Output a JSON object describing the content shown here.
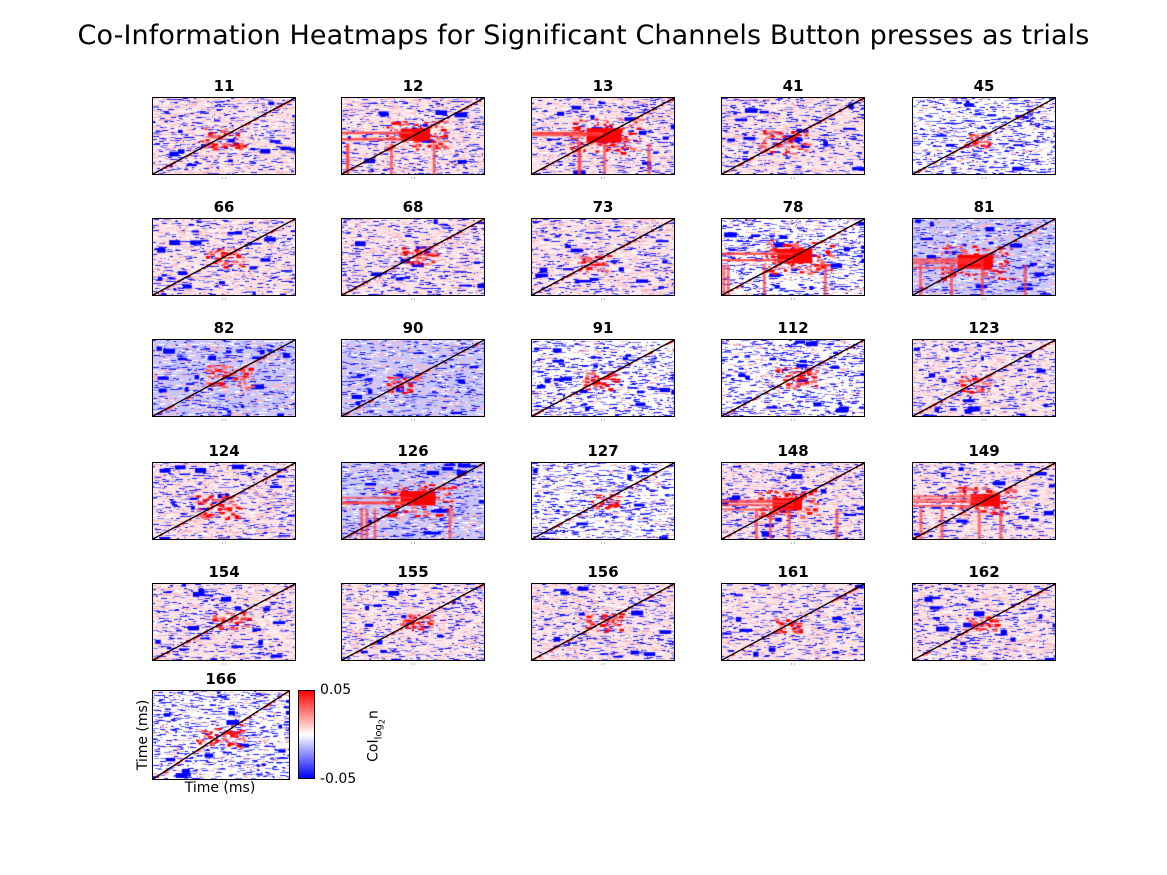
{
  "title": "Co-Information Heatmaps for Significant Channels Button presses as trials",
  "colors": {
    "positive": "#ff0000",
    "zero": "#ffffff",
    "negative": "#0000ff",
    "diagonal": "#000000"
  },
  "chart_data": {
    "type": "heatmap",
    "title": "Co-Information Heatmaps for Significant Channels Button presses as trials",
    "grid": "5 columns x 6 rows of small multiples",
    "xlabel": "Time (ms)",
    "ylabel": "Time (ms)",
    "colorbar": {
      "label_main": "CoI",
      "label_sub": "log",
      "label_subsub": "2",
      "label_tail": "n",
      "max_label": "0.05",
      "min_label": "-0.05",
      "range": [
        -0.05,
        0.05
      ],
      "colormap": "blue-white-red"
    },
    "panels": [
      {
        "channel": "11",
        "background": "light-pink",
        "hotspot_strength": 0.5
      },
      {
        "channel": "12",
        "background": "light-pink",
        "hotspot_strength": 0.8
      },
      {
        "channel": "13",
        "background": "light-pink",
        "hotspot_strength": 1.0
      },
      {
        "channel": "41",
        "background": "light-pink",
        "hotspot_strength": 0.6
      },
      {
        "channel": "45",
        "background": "white",
        "hotspot_strength": 0.2
      },
      {
        "channel": "66",
        "background": "light-pink",
        "hotspot_strength": 0.4
      },
      {
        "channel": "68",
        "background": "light-pink",
        "hotspot_strength": 0.4
      },
      {
        "channel": "73",
        "background": "light-pink",
        "hotspot_strength": 0.3
      },
      {
        "channel": "78",
        "background": "white",
        "hotspot_strength": 1.0
      },
      {
        "channel": "81",
        "background": "light-blue",
        "hotspot_strength": 1.0
      },
      {
        "channel": "82",
        "background": "light-blue",
        "hotspot_strength": 0.6
      },
      {
        "channel": "90",
        "background": "light-blue",
        "hotspot_strength": 0.3
      },
      {
        "channel": "91",
        "background": "white",
        "hotspot_strength": 0.4
      },
      {
        "channel": "112",
        "background": "white",
        "hotspot_strength": 0.5
      },
      {
        "channel": "123",
        "background": "light-pink",
        "hotspot_strength": 0.3
      },
      {
        "channel": "124",
        "background": "light-pink",
        "hotspot_strength": 0.6
      },
      {
        "channel": "126",
        "background": "light-blue",
        "hotspot_strength": 1.0
      },
      {
        "channel": "127",
        "background": "white",
        "hotspot_strength": 0.2
      },
      {
        "channel": "148",
        "background": "light-pink",
        "hotspot_strength": 0.8
      },
      {
        "channel": "149",
        "background": "light-pink",
        "hotspot_strength": 0.8
      },
      {
        "channel": "154",
        "background": "light-pink",
        "hotspot_strength": 0.4
      },
      {
        "channel": "155",
        "background": "light-pink",
        "hotspot_strength": 0.3
      },
      {
        "channel": "156",
        "background": "light-pink",
        "hotspot_strength": 0.4
      },
      {
        "channel": "161",
        "background": "light-pink",
        "hotspot_strength": 0.2
      },
      {
        "channel": "162",
        "background": "light-pink",
        "hotspot_strength": 0.3
      },
      {
        "channel": "166",
        "background": "white",
        "hotspot_strength": 0.6
      }
    ]
  }
}
